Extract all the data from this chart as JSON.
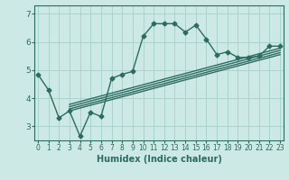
{
  "title": "",
  "xlabel": "Humidex (Indice chaleur)",
  "ylabel": "",
  "bg_color": "#cce9e5",
  "line_color": "#2d6b60",
  "grid_color": "#aad4ce",
  "x_ticks": [
    0,
    1,
    2,
    3,
    4,
    5,
    6,
    7,
    8,
    9,
    10,
    11,
    12,
    13,
    14,
    15,
    16,
    17,
    18,
    19,
    20,
    21,
    22,
    23
  ],
  "y_ticks": [
    3,
    4,
    5,
    6,
    7
  ],
  "xlim": [
    -0.3,
    23.3
  ],
  "ylim": [
    2.5,
    7.3
  ],
  "main_line_x": [
    0,
    1,
    2,
    3,
    4,
    5,
    6,
    7,
    8,
    9,
    10,
    11,
    12,
    13,
    14,
    15,
    16,
    17,
    18,
    19,
    20,
    21,
    22,
    23
  ],
  "main_line_y": [
    4.85,
    4.3,
    3.3,
    3.55,
    2.65,
    3.5,
    3.35,
    4.7,
    4.85,
    4.95,
    6.2,
    6.65,
    6.65,
    6.65,
    6.35,
    6.6,
    6.1,
    5.55,
    5.65,
    5.45,
    5.45,
    5.5,
    5.85,
    5.85
  ],
  "reg_lines": [
    {
      "x": [
        3.0,
        23
      ],
      "y": [
        3.55,
        5.55
      ]
    },
    {
      "x": [
        3.0,
        23
      ],
      "y": [
        3.62,
        5.62
      ]
    },
    {
      "x": [
        3.0,
        23
      ],
      "y": [
        3.7,
        5.7
      ]
    },
    {
      "x": [
        3.0,
        23
      ],
      "y": [
        3.78,
        5.78
      ]
    }
  ],
  "marker": "D",
  "marker_size": 2.5,
  "line_width": 1.0
}
